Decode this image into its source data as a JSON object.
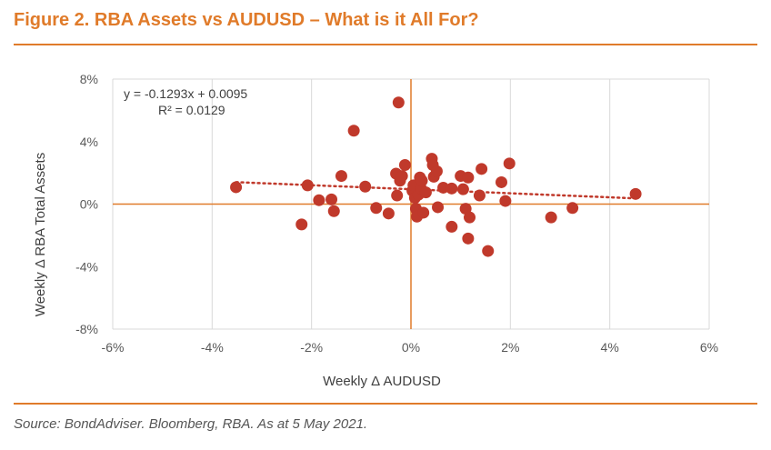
{
  "title": "Figure 2. RBA Assets vs AUDUSD – What is it All For?",
  "source": "Source: BondAdviser. Bloomberg, RBA. As at 5 May 2021.",
  "colors": {
    "accent": "#e07b2a",
    "point": "#c0392b",
    "grid": "#d9d9d9",
    "zero_axis": "#e07b2a"
  },
  "chart_data": {
    "type": "scatter",
    "xlabel": "Weekly Δ AUDUSD",
    "ylabel": "Weekly Δ  RBA Total Assets",
    "xlim": [
      -0.06,
      0.06
    ],
    "ylim": [
      -0.08,
      0.08
    ],
    "x_ticks": [
      -0.06,
      -0.04,
      -0.02,
      0,
      0.02,
      0.04,
      0.06
    ],
    "y_ticks": [
      -0.08,
      -0.04,
      0,
      0.04,
      0.08
    ],
    "x_tick_labels": [
      "-6%",
      "-4%",
      "-2%",
      "0%",
      "2%",
      "4%",
      "6%"
    ],
    "y_tick_labels": [
      "-8%",
      "-4%",
      "0%",
      "4%",
      "8%"
    ],
    "grid": "vertical",
    "trendline": {
      "type": "linear",
      "slope": -0.1293,
      "intercept": 0.0095,
      "equation": "y = -0.1293x + 0.0095",
      "r2_label": "R² = 0.0129"
    },
    "points": [
      [
        -0.0352,
        0.0108
      ],
      [
        -0.022,
        -0.013
      ],
      [
        -0.0208,
        0.012
      ],
      [
        -0.0185,
        0.0025
      ],
      [
        -0.016,
        0.003
      ],
      [
        -0.0155,
        -0.0045
      ],
      [
        -0.014,
        0.018
      ],
      [
        -0.0115,
        0.047
      ],
      [
        -0.0092,
        0.0112
      ],
      [
        -0.007,
        -0.0025
      ],
      [
        -0.0045,
        -0.006
      ],
      [
        -0.003,
        0.0195
      ],
      [
        -0.0025,
        0.065
      ],
      [
        -0.0022,
        0.015
      ],
      [
        -0.0028,
        0.0055
      ],
      [
        -0.0018,
        0.018
      ],
      [
        -0.0012,
        0.025
      ],
      [
        0.0003,
        0.0085
      ],
      [
        0.0005,
        0.012
      ],
      [
        0.0008,
        0.004
      ],
      [
        0.001,
        -0.003
      ],
      [
        0.0012,
        -0.008
      ],
      [
        0.0015,
        0.006
      ],
      [
        0.0018,
        0.017
      ],
      [
        0.002,
        0.01
      ],
      [
        0.0022,
        0.015
      ],
      [
        0.0025,
        -0.0055
      ],
      [
        0.003,
        0.0075
      ],
      [
        0.0042,
        0.029
      ],
      [
        0.0044,
        0.025
      ],
      [
        0.0046,
        0.0175
      ],
      [
        0.0052,
        0.021
      ],
      [
        0.0054,
        -0.002
      ],
      [
        0.0065,
        0.0105
      ],
      [
        0.0082,
        0.01
      ],
      [
        0.0082,
        -0.0145
      ],
      [
        0.01,
        0.018
      ],
      [
        0.0105,
        0.0095
      ],
      [
        0.011,
        -0.003
      ],
      [
        0.0115,
        0.017
      ],
      [
        0.0115,
        -0.022
      ],
      [
        0.0118,
        -0.0085
      ],
      [
        0.0138,
        0.0055
      ],
      [
        0.0142,
        0.0225
      ],
      [
        0.0155,
        -0.03
      ],
      [
        0.0182,
        0.014
      ],
      [
        0.019,
        0.002
      ],
      [
        0.0198,
        0.026
      ],
      [
        0.0282,
        -0.0085
      ],
      [
        0.0325,
        -0.0025
      ],
      [
        0.0452,
        0.0065
      ]
    ]
  }
}
